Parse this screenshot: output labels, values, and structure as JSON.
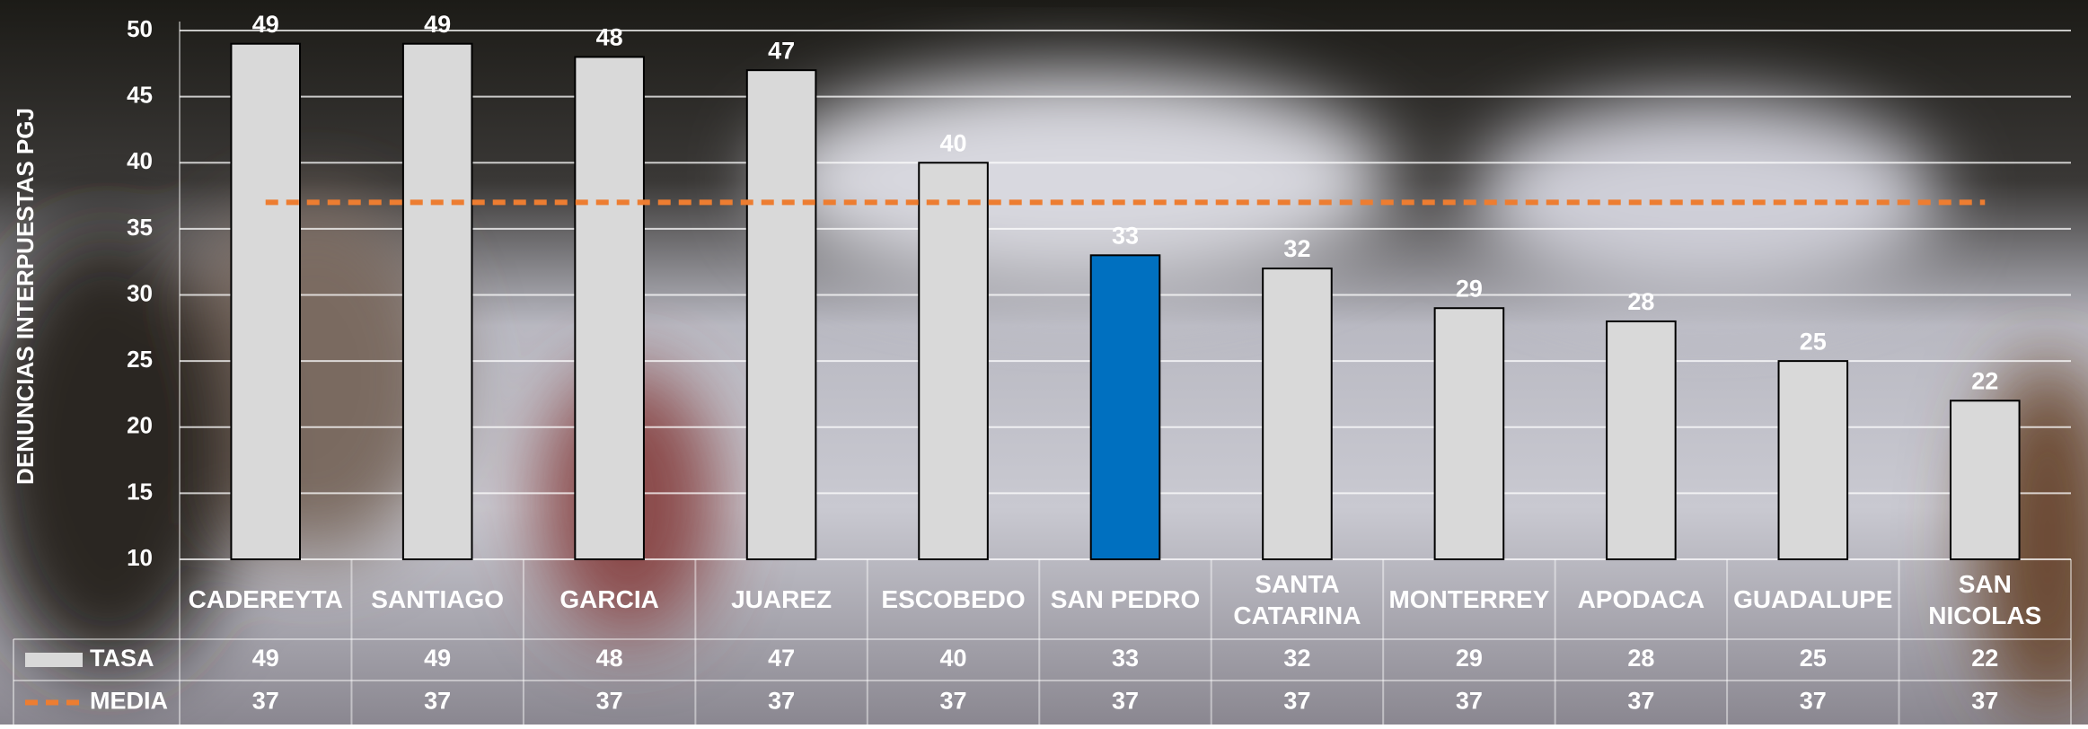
{
  "chart_data": {
    "type": "bar",
    "y_axis_label": "DENUNCIAS INTERPUESTAS PGJ",
    "categories": [
      "CADEREYTA",
      "SANTIAGO",
      "GARCIA",
      "JUAREZ",
      "ESCOBEDO",
      "SAN PEDRO",
      "SANTA CATARINA",
      "MONTERREY",
      "APODACA",
      "GUADALUPE",
      "SAN NICOLAS"
    ],
    "series": [
      {
        "name": "TASA",
        "type": "bar",
        "color": "#d9d9d9",
        "colors": [
          "#d9d9d9",
          "#d9d9d9",
          "#d9d9d9",
          "#d9d9d9",
          "#d9d9d9",
          "#0070c0",
          "#d9d9d9",
          "#d9d9d9",
          "#d9d9d9",
          "#d9d9d9",
          "#d9d9d9"
        ],
        "values": [
          49,
          49,
          48,
          47,
          40,
          33,
          32,
          29,
          28,
          25,
          22
        ]
      },
      {
        "name": "MEDIA",
        "type": "line",
        "color": "#ed7d31",
        "dashed": true,
        "values": [
          37,
          37,
          37,
          37,
          37,
          37,
          37,
          37,
          37,
          37,
          37
        ]
      }
    ],
    "ylim": [
      10,
      50
    ],
    "yticks": [
      10,
      15,
      20,
      25,
      30,
      35,
      40,
      45,
      50
    ],
    "grid": true,
    "data_table": true
  }
}
